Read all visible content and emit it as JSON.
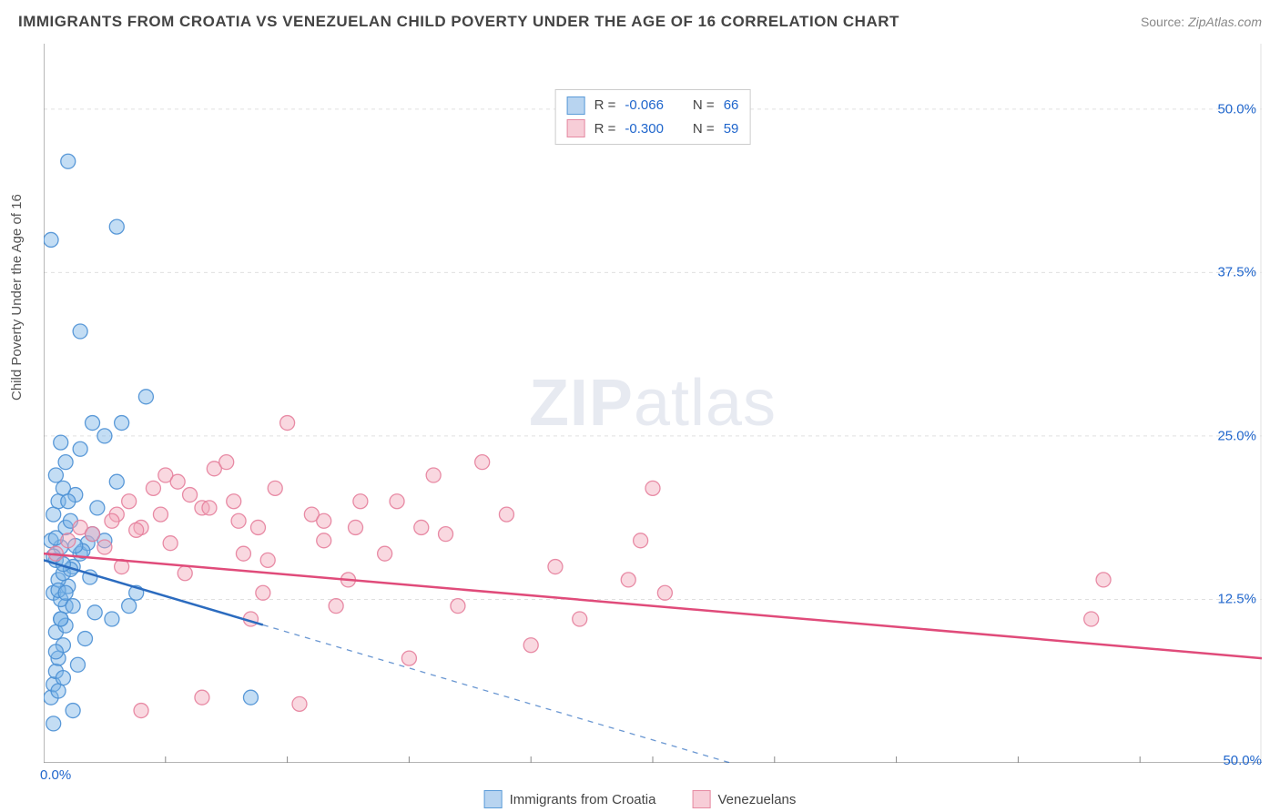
{
  "header": {
    "title": "IMMIGRANTS FROM CROATIA VS VENEZUELAN CHILD POVERTY UNDER THE AGE OF 16 CORRELATION CHART",
    "source_label": "Source:",
    "source_value": "ZipAtlas.com"
  },
  "y_axis_label": "Child Poverty Under the Age of 16",
  "watermark": {
    "bold": "ZIP",
    "light": "atlas"
  },
  "legend_top": {
    "rows": [
      {
        "swatch_fill": "#b8d4f0",
        "swatch_stroke": "#5a9bd8",
        "r_label": "R =",
        "r_value": "-0.066",
        "n_label": "N =",
        "n_value": "66"
      },
      {
        "swatch_fill": "#f7cdd7",
        "swatch_stroke": "#e68aa2",
        "r_label": "R =",
        "r_value": "-0.300",
        "n_label": "N =",
        "n_value": "59"
      }
    ]
  },
  "legend_bottom": {
    "items": [
      {
        "swatch_fill": "#b8d4f0",
        "swatch_stroke": "#5a9bd8",
        "label": "Immigrants from Croatia"
      },
      {
        "swatch_fill": "#f7cdd7",
        "swatch_stroke": "#e68aa2",
        "label": "Venezuelans"
      }
    ]
  },
  "chart": {
    "type": "scatter",
    "background_color": "#ffffff",
    "grid_color": "#e0e0e0",
    "axis_color": "#888888",
    "xlim": [
      0,
      50
    ],
    "ylim": [
      0,
      55
    ],
    "y_ticks": [
      {
        "value": 12.5,
        "label": "12.5%"
      },
      {
        "value": 25.0,
        "label": "25.0%"
      },
      {
        "value": 37.5,
        "label": "37.5%"
      },
      {
        "value": 50.0,
        "label": "50.0%"
      }
    ],
    "x_ticks_minor": [
      5,
      10,
      15,
      20,
      25,
      30,
      35,
      40,
      45
    ],
    "x_tick_labels": {
      "start": "0.0%",
      "end": "50.0%"
    },
    "marker_radius": 8,
    "marker_opacity": 0.45,
    "series": [
      {
        "name": "croatia",
        "fill": "#7ab3e6",
        "stroke": "#4a8fd4",
        "trend": {
          "solid_end_x": 9,
          "y_at_0": 15.5,
          "y_at_50": -12,
          "color": "#2b6bbf",
          "width": 2.5
        },
        "points": [
          [
            0.3,
            5
          ],
          [
            0.4,
            6
          ],
          [
            0.5,
            7
          ],
          [
            0.6,
            8
          ],
          [
            0.8,
            9
          ],
          [
            0.5,
            10
          ],
          [
            0.7,
            11
          ],
          [
            0.9,
            12
          ],
          [
            0.4,
            13
          ],
          [
            1.0,
            13.5
          ],
          [
            0.6,
            14
          ],
          [
            0.8,
            14.5
          ],
          [
            1.2,
            15
          ],
          [
            0.5,
            15.5
          ],
          [
            1.5,
            16
          ],
          [
            0.7,
            16.5
          ],
          [
            1.8,
            16.8
          ],
          [
            0.3,
            17
          ],
          [
            2.0,
            17.5
          ],
          [
            0.9,
            18
          ],
          [
            1.1,
            18.5
          ],
          [
            0.4,
            19
          ],
          [
            2.2,
            19.5
          ],
          [
            0.6,
            20
          ],
          [
            1.3,
            20.5
          ],
          [
            0.8,
            21
          ],
          [
            3.0,
            21.5
          ],
          [
            0.5,
            22
          ],
          [
            0.9,
            23
          ],
          [
            1.5,
            24
          ],
          [
            0.7,
            24.5
          ],
          [
            2.5,
            25
          ],
          [
            1.0,
            20
          ],
          [
            0.3,
            40
          ],
          [
            3.5,
            12
          ],
          [
            0.4,
            3
          ],
          [
            1.2,
            4
          ],
          [
            0.6,
            5.5
          ],
          [
            2.8,
            11
          ],
          [
            0.8,
            6.5
          ],
          [
            1.4,
            7.5
          ],
          [
            0.5,
            8.5
          ],
          [
            1.7,
            9.5
          ],
          [
            0.9,
            10.5
          ],
          [
            2.1,
            11.5
          ],
          [
            0.7,
            12.5
          ],
          [
            1.0,
            46
          ],
          [
            3.0,
            41
          ],
          [
            1.1,
            14.8
          ],
          [
            0.4,
            15.8
          ],
          [
            1.6,
            16.2
          ],
          [
            0.6,
            13.2
          ],
          [
            1.9,
            14.2
          ],
          [
            3.2,
            26
          ],
          [
            0.8,
            15.2
          ],
          [
            1.3,
            16.6
          ],
          [
            4.2,
            28
          ],
          [
            0.5,
            17.2
          ],
          [
            2.0,
            26
          ],
          [
            1.5,
            33
          ],
          [
            2.5,
            17
          ],
          [
            0.9,
            13
          ],
          [
            8.5,
            5
          ],
          [
            3.8,
            13
          ],
          [
            1.2,
            12
          ],
          [
            0.7,
            11
          ]
        ]
      },
      {
        "name": "venezuelans",
        "fill": "#f2a9bb",
        "stroke": "#e57f9c",
        "trend": {
          "solid_end_x": 50,
          "y_at_0": 16,
          "y_at_50": 8,
          "color": "#e04b7a",
          "width": 2.5
        },
        "points": [
          [
            0.5,
            16
          ],
          [
            1.0,
            17
          ],
          [
            1.5,
            18
          ],
          [
            2.0,
            17.5
          ],
          [
            2.5,
            16.5
          ],
          [
            3.0,
            19
          ],
          [
            3.5,
            20
          ],
          [
            4.0,
            18
          ],
          [
            4.5,
            21
          ],
          [
            5.0,
            22
          ],
          [
            5.5,
            21.5
          ],
          [
            6.0,
            20.5
          ],
          [
            6.5,
            19.5
          ],
          [
            7.0,
            22.5
          ],
          [
            7.5,
            23
          ],
          [
            8.0,
            18.5
          ],
          [
            8.5,
            11
          ],
          [
            9.0,
            13
          ],
          [
            9.5,
            21
          ],
          [
            10.0,
            26
          ],
          [
            11.0,
            19
          ],
          [
            11.5,
            17
          ],
          [
            12.0,
            12
          ],
          [
            12.5,
            14
          ],
          [
            13.0,
            20
          ],
          [
            14.0,
            16
          ],
          [
            15.0,
            8
          ],
          [
            15.5,
            18
          ],
          [
            16.0,
            22
          ],
          [
            17.0,
            12
          ],
          [
            18.0,
            23
          ],
          [
            19.0,
            19
          ],
          [
            20.0,
            9
          ],
          [
            21.0,
            15
          ],
          [
            22.0,
            11
          ],
          [
            24.0,
            14
          ],
          [
            25.0,
            21
          ],
          [
            24.5,
            17
          ],
          [
            25.5,
            13
          ],
          [
            43.5,
            14
          ],
          [
            43.0,
            11
          ],
          [
            4.0,
            4
          ],
          [
            6.5,
            5
          ],
          [
            10.5,
            4.5
          ],
          [
            3.2,
            15
          ],
          [
            5.8,
            14.5
          ],
          [
            8.2,
            16
          ],
          [
            6.8,
            19.5
          ],
          [
            9.2,
            15.5
          ],
          [
            11.5,
            18.5
          ],
          [
            12.8,
            18
          ],
          [
            14.5,
            20
          ],
          [
            16.5,
            17.5
          ],
          [
            7.8,
            20
          ],
          [
            8.8,
            18
          ],
          [
            2.8,
            18.5
          ],
          [
            4.8,
            19
          ],
          [
            5.2,
            16.8
          ],
          [
            3.8,
            17.8
          ]
        ]
      }
    ]
  }
}
